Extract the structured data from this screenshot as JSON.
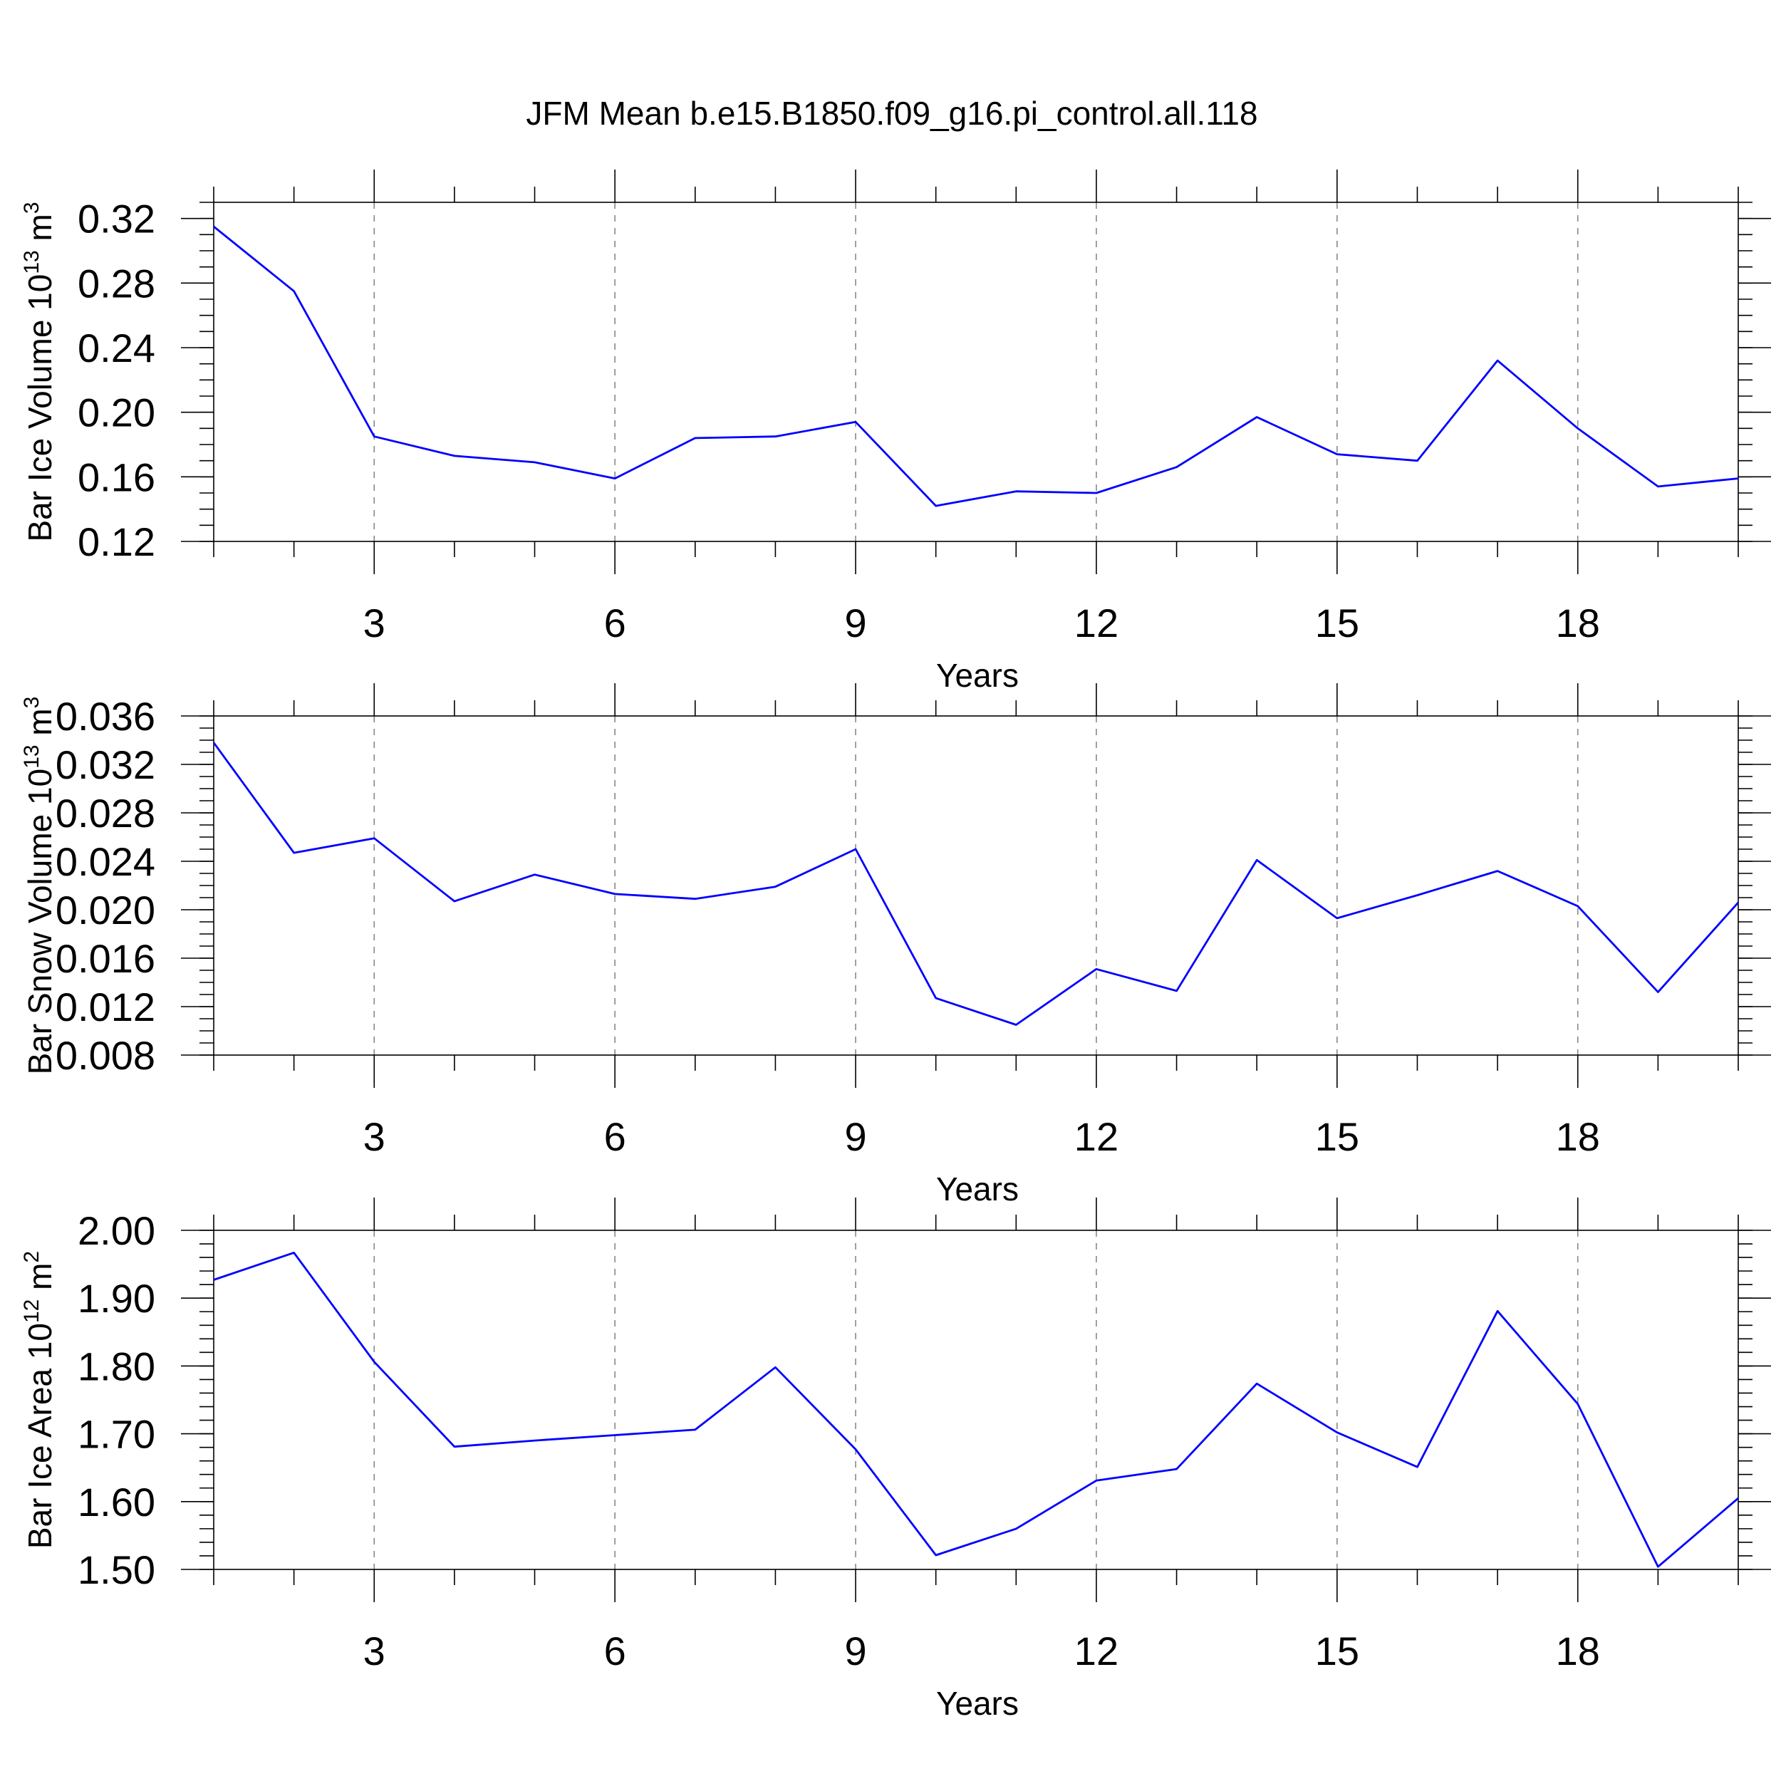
{
  "title": "JFM Mean b.e15.B1850.f09_g16.pi_control.all.118",
  "chart_data": [
    {
      "type": "line",
      "id": "ice-volume",
      "xlabel": "Years",
      "ylabel": {
        "prefix": "Bar Ice Volume 10",
        "sup1": "13",
        "mid": " m",
        "sup2": "3"
      },
      "xlim": [
        1,
        20
      ],
      "ylim": [
        0.12,
        0.33
      ],
      "yticks": [
        0.12,
        0.16,
        0.2,
        0.24,
        0.28,
        0.32
      ],
      "ytick_labels": [
        "0.12",
        "0.16",
        "0.20",
        "0.24",
        "0.28",
        "0.32"
      ],
      "yminor_step": 0.01,
      "xticks": [
        3,
        6,
        9,
        12,
        15,
        18
      ],
      "xtick_labels": [
        "3",
        "6",
        "9",
        "12",
        "15",
        "18"
      ],
      "grid": "vertical dashed at major x ticks",
      "series": [
        {
          "name": "Bar Ice Volume",
          "color": "#0000ff",
          "x": [
            1,
            2,
            3,
            4,
            5,
            6,
            7,
            8,
            9,
            10,
            11,
            12,
            13,
            14,
            15,
            16,
            17,
            18,
            19,
            20
          ],
          "values": [
            0.315,
            0.275,
            0.185,
            0.173,
            0.169,
            0.159,
            0.184,
            0.185,
            0.194,
            0.142,
            0.151,
            0.15,
            0.166,
            0.197,
            0.174,
            0.17,
            0.232,
            0.19,
            0.154,
            0.159
          ]
        }
      ]
    },
    {
      "type": "line",
      "id": "snow-volume",
      "xlabel": "Years",
      "ylabel": {
        "prefix": "Bar Snow Volume 10",
        "sup1": "13",
        "mid": " m",
        "sup2": "3"
      },
      "xlim": [
        1,
        20
      ],
      "ylim": [
        0.008,
        0.036
      ],
      "yticks": [
        0.008,
        0.012,
        0.016,
        0.02,
        0.024,
        0.028,
        0.032,
        0.036
      ],
      "ytick_labels": [
        "0.008",
        "0.012",
        "0.016",
        "0.020",
        "0.024",
        "0.028",
        "0.032",
        "0.036"
      ],
      "yminor_step": 0.001,
      "xticks": [
        3,
        6,
        9,
        12,
        15,
        18
      ],
      "xtick_labels": [
        "3",
        "6",
        "9",
        "12",
        "15",
        "18"
      ],
      "grid": "vertical dashed at major x ticks",
      "series": [
        {
          "name": "Bar Snow Volume",
          "color": "#0000ff",
          "x": [
            1,
            2,
            3,
            4,
            5,
            6,
            7,
            8,
            9,
            10,
            11,
            12,
            13,
            14,
            15,
            16,
            17,
            18,
            19,
            20
          ],
          "values": [
            0.0338,
            0.0247,
            0.0259,
            0.0207,
            0.0229,
            0.0213,
            0.0209,
            0.0219,
            0.025,
            0.0127,
            0.0105,
            0.0151,
            0.0133,
            0.0241,
            0.0193,
            0.0212,
            0.0232,
            0.0203,
            0.0132,
            0.0206
          ]
        }
      ]
    },
    {
      "type": "line",
      "id": "ice-area",
      "xlabel": "Years",
      "ylabel": {
        "prefix": "Bar Ice Area 10",
        "sup1": "12",
        "mid": " m",
        "sup2": "2"
      },
      "xlim": [
        1,
        20
      ],
      "ylim": [
        1.5,
        2.0
      ],
      "yticks": [
        1.5,
        1.6,
        1.7,
        1.8,
        1.9,
        2.0
      ],
      "ytick_labels": [
        "1.50",
        "1.60",
        "1.70",
        "1.80",
        "1.90",
        "2.00"
      ],
      "yminor_step": 0.02,
      "xticks": [
        3,
        6,
        9,
        12,
        15,
        18
      ],
      "xtick_labels": [
        "3",
        "6",
        "9",
        "12",
        "15",
        "18"
      ],
      "grid": "vertical dashed at major x ticks",
      "series": [
        {
          "name": "Bar Ice Area",
          "color": "#0000ff",
          "x": [
            1,
            2,
            3,
            4,
            5,
            6,
            7,
            8,
            9,
            10,
            11,
            12,
            13,
            14,
            15,
            16,
            17,
            18,
            19,
            20
          ],
          "values": [
            1.927,
            1.967,
            1.806,
            1.681,
            1.69,
            1.698,
            1.706,
            1.798,
            1.677,
            1.521,
            1.56,
            1.631,
            1.648,
            1.774,
            1.702,
            1.651,
            1.881,
            1.744,
            1.504,
            1.605
          ]
        }
      ]
    }
  ]
}
